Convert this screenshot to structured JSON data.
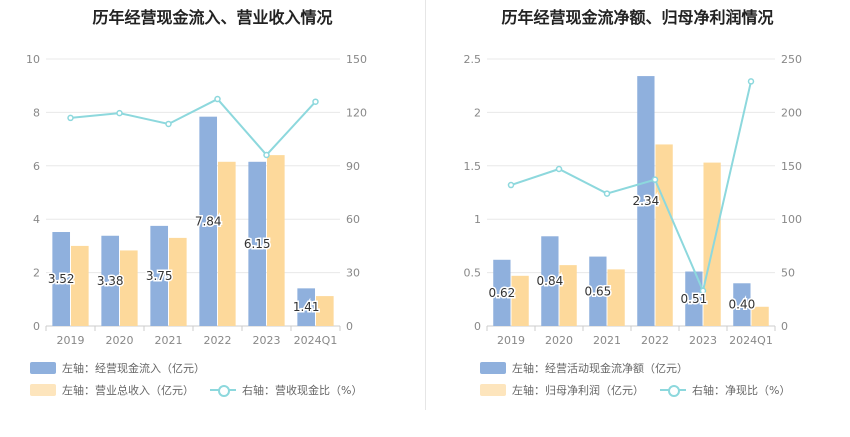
{
  "chart_data": [
    {
      "type": "bar",
      "title": "历年经营现金流入、营业收入情况",
      "categories": [
        "2019",
        "2020",
        "2021",
        "2022",
        "2023",
        "2024Q1"
      ],
      "y_left": {
        "ylim": [
          0,
          10
        ],
        "ticks": [
          "0",
          "2",
          "4",
          "6",
          "8",
          "10"
        ]
      },
      "y_right": {
        "ylim": [
          0,
          150
        ],
        "ticks": [
          "0",
          "30",
          "60",
          "90",
          "120",
          "150"
        ]
      },
      "series": [
        {
          "name": "左轴：经营现金流入（亿元）",
          "axis": "left",
          "kind": "bar",
          "color": "#8fb0dd",
          "values": [
            3.52,
            3.38,
            3.75,
            7.84,
            6.15,
            1.41
          ],
          "labels": [
            "3.52",
            "3.38",
            "3.75",
            "7.84",
            "6.15",
            "1.41"
          ]
        },
        {
          "name": "左轴：营业总收入（亿元）",
          "axis": "left",
          "kind": "bar",
          "color": "#fdd99b",
          "values": [
            3.0,
            2.83,
            3.3,
            6.15,
            6.4,
            1.12
          ]
        },
        {
          "name": "右轴：营收现金比（%）",
          "axis": "right",
          "kind": "line",
          "color": "#8dd8dd",
          "values": [
            116.9,
            119.6,
            113.5,
            127.5,
            96.1,
            126.0
          ]
        }
      ],
      "grid": true,
      "legend": "bottom"
    },
    {
      "type": "bar",
      "title": "历年经营现金流净额、归母净利润情况",
      "categories": [
        "2019",
        "2020",
        "2021",
        "2022",
        "2023",
        "2024Q1"
      ],
      "y_left": {
        "ylim": [
          0,
          2.5
        ],
        "ticks": [
          "0",
          "0.5",
          "1",
          "1.5",
          "2",
          "2.5"
        ]
      },
      "y_right": {
        "ylim": [
          0,
          250
        ],
        "ticks": [
          "0",
          "50",
          "100",
          "150",
          "200",
          "250"
        ]
      },
      "series": [
        {
          "name": "左轴：经营活动现金流净额（亿元）",
          "axis": "left",
          "kind": "bar",
          "color": "#8fb0dd",
          "values": [
            0.62,
            0.84,
            0.65,
            2.34,
            0.51,
            0.4
          ],
          "labels": [
            "0.62",
            "0.84",
            "0.65",
            "2.34",
            "0.51",
            "0.40"
          ]
        },
        {
          "name": "左轴：归母净利润（亿元）",
          "axis": "left",
          "kind": "bar",
          "color": "#fdd99b",
          "values": [
            0.47,
            0.57,
            0.53,
            1.7,
            1.53,
            0.18
          ]
        },
        {
          "name": "右轴：净现比（%）",
          "axis": "right",
          "kind": "line",
          "color": "#8dd8dd",
          "values": [
            132,
            147,
            124,
            137,
            33,
            229
          ]
        }
      ],
      "grid": true,
      "legend": "bottom"
    }
  ]
}
